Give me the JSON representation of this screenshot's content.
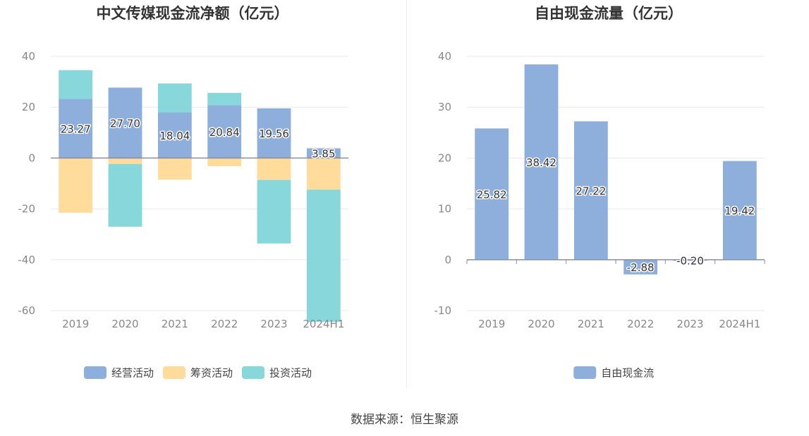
{
  "chart_data": [
    {
      "type": "bar",
      "stacked": true,
      "title": "中文传媒现金流净额（亿元）",
      "categories": [
        "2019",
        "2020",
        "2021",
        "2022",
        "2023",
        "2024H1"
      ],
      "ylim": [
        -60,
        40
      ],
      "yticks": [
        40,
        20,
        0,
        -20,
        -40,
        -60
      ],
      "series": [
        {
          "name": "经营活动",
          "color": "#8eaedb",
          "values": [
            23.27,
            27.7,
            18.04,
            20.84,
            19.56,
            3.85
          ],
          "labels": [
            "23.27",
            "27.70",
            "18.04",
            "20.84",
            "19.56",
            "3.85"
          ]
        },
        {
          "name": "筹资活动",
          "color": "#ffdb9c",
          "values": [
            -21.5,
            -2.3,
            -8.5,
            -3.2,
            -8.6,
            -12.4
          ]
        },
        {
          "name": "投资活动",
          "color": "#88d7da",
          "values": [
            11.3,
            -24.7,
            11.3,
            4.8,
            -25.0,
            -52.0
          ]
        }
      ],
      "legend": "bottom"
    },
    {
      "type": "bar",
      "title": "自由现金流量（亿元）",
      "categories": [
        "2019",
        "2020",
        "2021",
        "2022",
        "2023",
        "2024H1"
      ],
      "ylim": [
        -10,
        40
      ],
      "yticks": [
        40,
        30,
        20,
        10,
        0,
        -10
      ],
      "series": [
        {
          "name": "自由现金流",
          "color": "#8eaedb",
          "values": [
            25.82,
            38.42,
            27.22,
            -2.88,
            -0.2,
            19.42
          ],
          "labels": [
            "25.82",
            "38.42",
            "27.22",
            "-2.88",
            "-0.20",
            "19.42"
          ]
        }
      ],
      "legend": "bottom"
    }
  ],
  "source_note": "数据来源：恒生聚源"
}
